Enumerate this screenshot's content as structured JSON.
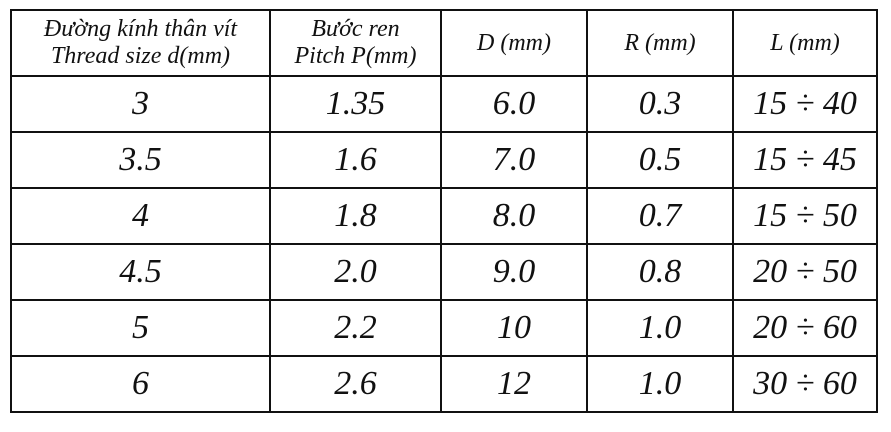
{
  "table": {
    "headers": [
      {
        "line1": "Đường kính thân vít",
        "line2": "Thread size d(mm)"
      },
      {
        "line1": "Bước ren",
        "line2": "Pitch P(mm)"
      },
      {
        "line1": "D (mm)",
        "line2": ""
      },
      {
        "line1": "R (mm)",
        "line2": ""
      },
      {
        "line1": "L (mm)",
        "line2": ""
      }
    ],
    "rows": [
      [
        "3",
        "1.35",
        "6.0",
        "0.3",
        "15 ÷ 40"
      ],
      [
        "3.5",
        "1.6",
        "7.0",
        "0.5",
        "15 ÷ 45"
      ],
      [
        "4",
        "1.8",
        "8.0",
        "0.7",
        "15 ÷ 50"
      ],
      [
        "4.5",
        "2.0",
        "9.0",
        "0.8",
        "20 ÷ 50"
      ],
      [
        "5",
        "2.2",
        "10",
        "1.0",
        "20 ÷ 60"
      ],
      [
        "6",
        "2.6",
        "12",
        "1.0",
        "30 ÷ 60"
      ]
    ]
  }
}
